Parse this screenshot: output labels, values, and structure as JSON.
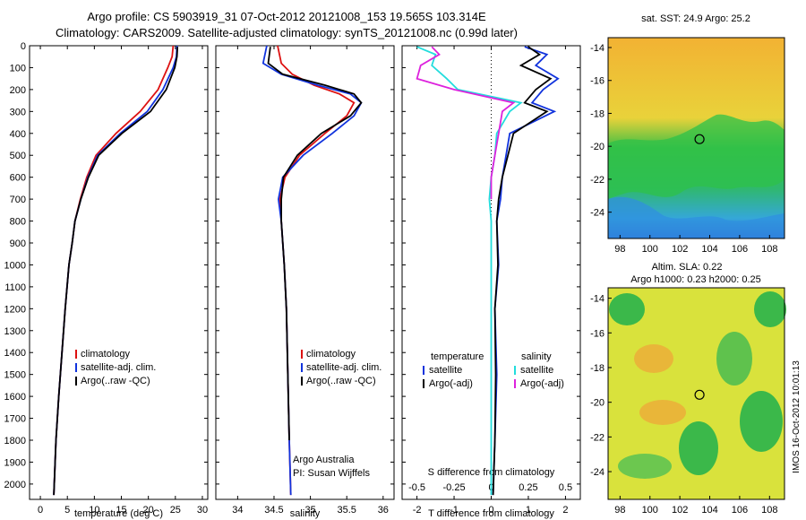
{
  "header": {
    "line1": "Argo profile: CS 5903919_31 07-Oct-2012 20121008_153 19.565S 103.314E",
    "line2": "Climatology: CARS2009. Satellite-adjusted climatology: synTS_20121008.nc (0.99d later)"
  },
  "colors": {
    "climatology": "#dd1111",
    "satellite": "#1133dd",
    "argo": "#000000",
    "satellite_salinity": "#22dddd",
    "argo_salinity": "#dd22dd"
  },
  "chart_data": [
    {
      "type": "line",
      "id": "temperature",
      "xlabel": "temperature (deg C)",
      "ylabel": "",
      "xlim": [
        -2,
        31
      ],
      "ylim": [
        2070,
        0
      ],
      "xticks": [
        0,
        5,
        10,
        15,
        20,
        25,
        30
      ],
      "yticks": [
        0,
        100,
        200,
        300,
        400,
        500,
        600,
        700,
        800,
        900,
        1000,
        1100,
        1200,
        1300,
        1400,
        1500,
        1600,
        1700,
        1800,
        1900,
        2000
      ],
      "y_inverted": true,
      "legend": [
        "climatology",
        "satellite-adj. clim.",
        "Argo(..raw -QC)"
      ],
      "series": [
        {
          "name": "climatology",
          "color": "#dd1111",
          "x": [
            24.6,
            24.4,
            23.6,
            21.8,
            18.5,
            14.0,
            10.3,
            8.6,
            7.4,
            6.4,
            5.9,
            5.3,
            4.6,
            4.0,
            3.4,
            2.9,
            2.5
          ],
          "y": [
            0,
            50,
            100,
            200,
            300,
            400,
            500,
            600,
            700,
            800,
            900,
            1000,
            1200,
            1400,
            1600,
            1800,
            2050
          ]
        },
        {
          "name": "satellite-adj. clim.",
          "color": "#1133dd",
          "x": [
            25.3,
            25.2,
            24.6,
            22.7,
            19.8,
            14.8,
            10.6,
            8.8,
            7.5,
            6.4,
            5.9,
            5.3,
            4.6,
            4.0,
            3.4,
            2.9,
            2.5
          ],
          "y": [
            0,
            50,
            100,
            200,
            300,
            400,
            500,
            600,
            700,
            800,
            900,
            1000,
            1200,
            1400,
            1600,
            1800,
            2050
          ]
        },
        {
          "name": "Argo(..raw -QC)",
          "color": "#000000",
          "x": [
            25.4,
            25.3,
            24.9,
            23.3,
            20.4,
            15.1,
            10.8,
            8.9,
            7.5,
            6.4,
            5.9,
            5.3,
            4.6,
            4.0,
            3.4,
            2.9,
            2.5
          ],
          "y": [
            5,
            50,
            100,
            200,
            300,
            400,
            500,
            600,
            700,
            800,
            900,
            1000,
            1200,
            1400,
            1600,
            1800,
            2050
          ]
        }
      ]
    },
    {
      "type": "line",
      "id": "salinity",
      "xlabel": "salinity",
      "ylabel": "",
      "xlim": [
        33.7,
        36.15
      ],
      "ylim": [
        2070,
        0
      ],
      "xticks": [
        34,
        34.5,
        35,
        35.5,
        36
      ],
      "y_inverted": true,
      "legend": [
        "climatology",
        "satellite-adj. clim.",
        "Argo(..raw -QC)"
      ],
      "annotation": [
        "Argo Australia",
        "PI: Susan Wijffels"
      ],
      "series": [
        {
          "name": "climatology",
          "color": "#dd1111",
          "x": [
            34.55,
            34.6,
            34.75,
            35.05,
            35.4,
            35.6,
            35.5,
            35.2,
            34.85,
            34.65,
            34.58,
            34.6,
            34.64,
            34.67,
            34.69,
            34.71,
            34.73
          ],
          "y": [
            0,
            80,
            130,
            180,
            220,
            260,
            320,
            400,
            500,
            600,
            700,
            800,
            1000,
            1200,
            1500,
            1800,
            2050
          ]
        },
        {
          "name": "satellite-adj. clim.",
          "color": "#1133dd",
          "x": [
            34.4,
            34.35,
            34.6,
            35.1,
            35.55,
            35.7,
            35.6,
            35.3,
            34.9,
            34.62,
            34.56,
            34.6,
            34.64,
            34.67,
            34.69,
            34.71,
            34.73
          ],
          "y": [
            0,
            80,
            130,
            180,
            220,
            260,
            320,
            400,
            500,
            600,
            700,
            800,
            1000,
            1200,
            1500,
            1800,
            2050
          ]
        },
        {
          "name": "Argo(..raw -QC)",
          "color": "#000000",
          "x": [
            34.45,
            34.42,
            34.62,
            35.2,
            35.6,
            35.7,
            35.55,
            35.15,
            34.82,
            34.63,
            34.6,
            34.6,
            34.64,
            34.67,
            34.69,
            34.71
          ],
          "y": [
            5,
            80,
            130,
            180,
            220,
            260,
            320,
            400,
            500,
            600,
            700,
            800,
            1000,
            1200,
            1500,
            1800
          ]
        }
      ]
    },
    {
      "type": "line",
      "id": "difference",
      "xlabel": "T difference from climatology",
      "xlabel_top": "S difference from climatology",
      "xlim": [
        -2.4,
        2.4
      ],
      "ylim": [
        2070,
        0
      ],
      "xticks": [
        -2,
        -1,
        0,
        1,
        2
      ],
      "xtick_labels_top": [
        "-0.5",
        "-0.25",
        "0",
        "0.25",
        "0.5"
      ],
      "y_inverted": true,
      "legend_left_title": "temperature",
      "legend_right_title": "salinity",
      "legend_left": [
        "satellite",
        "Argo(-adj)"
      ],
      "legend_right": [
        "satellite",
        "Argo(-adj)"
      ],
      "series": [
        {
          "name": "temperature satellite",
          "color": "#1133dd",
          "x": [
            0.9,
            1.5,
            1.2,
            1.8,
            1.4,
            1.1,
            1.7,
            0.5,
            0.4,
            0.3,
            0.25,
            0.15,
            0.2,
            0.1,
            0.15,
            0.1,
            0.05
          ],
          "y": [
            5,
            40,
            90,
            150,
            200,
            260,
            300,
            400,
            500,
            600,
            700,
            800,
            1000,
            1200,
            1500,
            1800,
            2050
          ]
        },
        {
          "name": "temperature Argo(-adj)",
          "color": "#000000",
          "x": [
            1.0,
            1.3,
            0.8,
            1.6,
            1.2,
            0.9,
            1.5,
            0.6,
            0.45,
            0.3,
            0.2,
            0.15,
            0.18,
            0.1,
            0.12,
            0.1,
            0.05
          ],
          "y": [
            5,
            40,
            90,
            150,
            200,
            260,
            300,
            400,
            500,
            600,
            700,
            800,
            1000,
            1200,
            1500,
            1800,
            2050
          ]
        },
        {
          "name": "salinity satellite",
          "color": "#22dddd",
          "x": [
            -2.0,
            -1.5,
            -1.6,
            -1.2,
            -0.9,
            0.8,
            0.5,
            0.15,
            0.1,
            0.0,
            -0.05,
            0.0,
            0.0,
            0.0,
            0.0,
            0.0,
            0.0
          ],
          "y": [
            5,
            40,
            90,
            150,
            200,
            260,
            300,
            400,
            500,
            600,
            700,
            800,
            1000,
            1200,
            1500,
            1800,
            2050
          ]
        },
        {
          "name": "salinity Argo(-adj)",
          "color": "#dd22dd",
          "x": [
            -1.6,
            -1.4,
            -1.9,
            -2.0,
            -1.0,
            0.6,
            0.3,
            0.2,
            0.1,
            0.0,
            0.0
          ],
          "y": [
            5,
            40,
            90,
            150,
            200,
            260,
            300,
            400,
            500,
            600,
            700
          ]
        }
      ]
    }
  ],
  "maps": [
    {
      "id": "sst",
      "title": "sat. SST: 24.9 Argo: 25.2",
      "lon_ticks": [
        98,
        100,
        102,
        104,
        106,
        108
      ],
      "lat_ticks": [
        -14,
        -16,
        -18,
        -20,
        -22,
        -24
      ],
      "profile_position": {
        "lon": 103.314,
        "lat": -19.565
      }
    },
    {
      "id": "sla",
      "title_line1": "Altim. SLA: 0.22",
      "title_line2": "Argo h1000: 0.23 h2000: 0.25",
      "lon_ticks": [
        98,
        100,
        102,
        104,
        106,
        108
      ],
      "lat_ticks": [
        -14,
        -16,
        -18,
        -20,
        -22,
        -24
      ],
      "profile_position": {
        "lon": 103.314,
        "lat": -19.565
      }
    }
  ],
  "footer": {
    "credit": "IMOS 16-Oct-2012 10:01:13"
  }
}
